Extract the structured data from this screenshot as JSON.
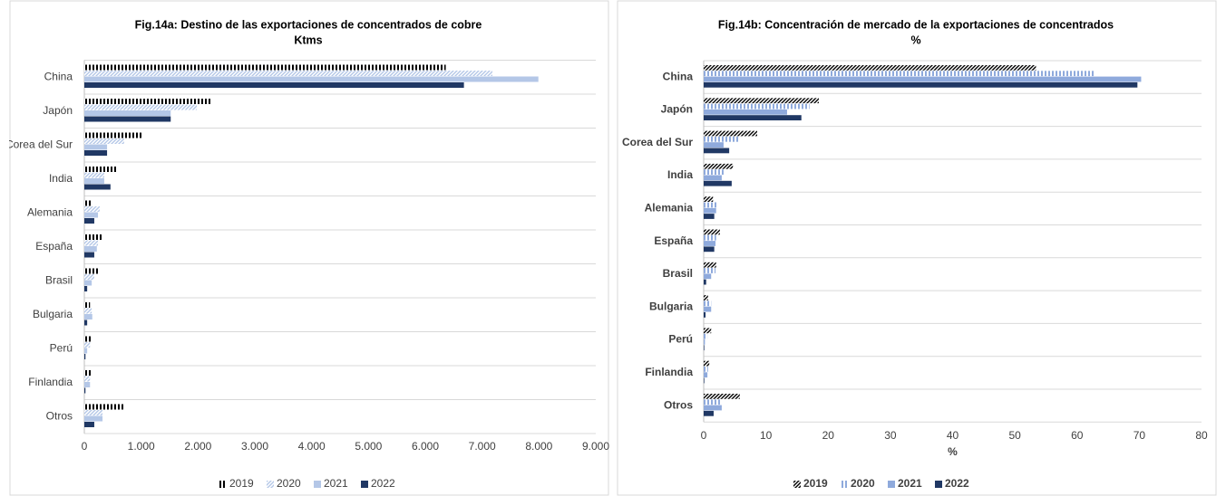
{
  "chart_data": [
    {
      "type": "barh",
      "title": "Fig.14a: Destino de las exportaciones de concentrados de cobre",
      "subtitle": "Ktms",
      "categories": [
        "China",
        "Japón",
        "Corea del Sur",
        "India",
        "Alemania",
        "España",
        "Brasil",
        "Bulgaria",
        "Perú",
        "Finlandia",
        "Otros"
      ],
      "series": [
        {
          "name": "2019",
          "color": "#000000",
          "pattern": "vertical",
          "values": [
            6360,
            2220,
            1020,
            560,
            140,
            320,
            260,
            100,
            140,
            130,
            700
          ]
        },
        {
          "name": "2020",
          "color": "#b4c7e7",
          "pattern": "diagonal",
          "values": [
            7180,
            1980,
            700,
            350,
            270,
            240,
            175,
            130,
            100,
            100,
            320
          ]
        },
        {
          "name": "2021",
          "color": "#b4c7e7",
          "pattern": "solid",
          "values": [
            7990,
            1520,
            400,
            350,
            240,
            220,
            130,
            140,
            50,
            100,
            320
          ]
        },
        {
          "name": "2022",
          "color": "#203864",
          "pattern": "solid",
          "values": [
            6680,
            1520,
            400,
            460,
            175,
            175,
            50,
            50,
            20,
            20,
            175
          ]
        }
      ],
      "xlim": [
        0,
        9000
      ],
      "xticks": [
        0,
        {
          "value": 1000,
          "label": "1.000"
        },
        {
          "value": 2000,
          "label": "2.000"
        },
        {
          "value": 3000,
          "label": "3.000"
        },
        {
          "value": 4000,
          "label": "4.000"
        },
        {
          "value": 5000,
          "label": "5.000"
        },
        {
          "value": 6000,
          "label": "6.000"
        },
        {
          "value": 7000,
          "label": "7.000"
        },
        {
          "value": 8000,
          "label": "8.000"
        },
        {
          "value": 9000,
          "label": "9.000"
        }
      ]
    },
    {
      "type": "barh",
      "title": "Fig.14b: Concentración de mercado de la exportaciones de concentrados",
      "subtitle": "%",
      "x_label": "%",
      "categories": [
        "China",
        "Japón",
        "Corea del Sur",
        "India",
        "Alemania",
        "España",
        "Brasil",
        "Bulgaria",
        "Perú",
        "Finlandia",
        "Otros"
      ],
      "series": [
        {
          "name": "2019",
          "color": "#000000",
          "pattern": "diagonal",
          "values": [
            53.4,
            18.5,
            8.6,
            4.7,
            1.5,
            2.6,
            2.0,
            0.7,
            1.2,
            0.9,
            5.8
          ]
        },
        {
          "name": "2020",
          "color": "#8faadc",
          "pattern": "vertical",
          "values": [
            62.8,
            17.0,
            5.8,
            3.2,
            2.3,
            2.0,
            1.9,
            1.2,
            0.6,
            0.7,
            2.8
          ]
        },
        {
          "name": "2021",
          "color": "#8faadc",
          "pattern": "solid",
          "values": [
            70.3,
            13.4,
            3.2,
            2.9,
            2.0,
            1.9,
            1.2,
            1.2,
            0.2,
            0.6,
            2.9
          ]
        },
        {
          "name": "2022",
          "color": "#203864",
          "pattern": "solid",
          "values": [
            69.7,
            15.7,
            4.1,
            4.5,
            1.7,
            1.7,
            0.4,
            0.3,
            0.1,
            0.1,
            1.6
          ]
        }
      ],
      "xlim": [
        0,
        80
      ],
      "xticks": [
        0,
        10,
        20,
        30,
        40,
        50,
        60,
        70,
        80
      ]
    }
  ]
}
